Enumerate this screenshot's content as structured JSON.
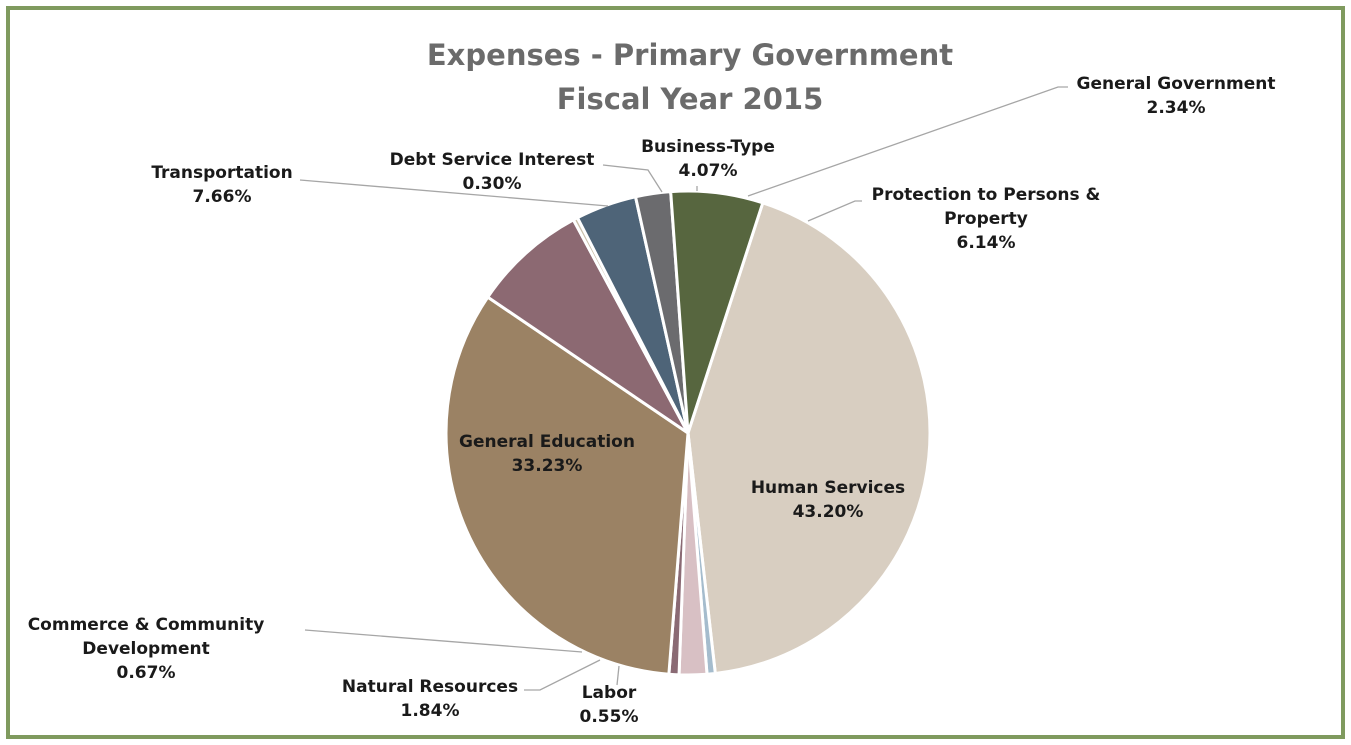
{
  "chart_data": {
    "type": "pie",
    "title": "Expenses - Primary Government",
    "subtitle": "Fiscal Year 2015",
    "slices": [
      {
        "label": "Human Services",
        "value": 43.2,
        "display": "43.20%",
        "color": "#d8cec1"
      },
      {
        "label": "Labor",
        "value": 0.55,
        "display": "0.55%",
        "color": "#a5bccd"
      },
      {
        "label": "Natural Resources",
        "value": 1.84,
        "display": "1.84%",
        "color": "#d8c0c4"
      },
      {
        "label": "Commerce & Community Development",
        "value": 0.67,
        "display": "0.67%",
        "color": "#8a6a74"
      },
      {
        "label": "General Education",
        "value": 33.23,
        "display": "33.23%",
        "color": "#9b8264"
      },
      {
        "label": "Transportation",
        "value": 7.66,
        "display": "7.66%",
        "color": "#8c6972"
      },
      {
        "label": "Debt Service Interest",
        "value": 0.3,
        "display": "0.30%",
        "color": "#c9bfa9"
      },
      {
        "label": "Business-Type",
        "value": 4.07,
        "display": "4.07%",
        "color": "#4e6478"
      },
      {
        "label": "General Government",
        "value": 2.34,
        "display": "2.34%",
        "color": "#6b6b6e"
      },
      {
        "label": "Protection to Persons & Property",
        "value": 6.14,
        "display": "6.14%",
        "color": "#57663f"
      }
    ]
  }
}
